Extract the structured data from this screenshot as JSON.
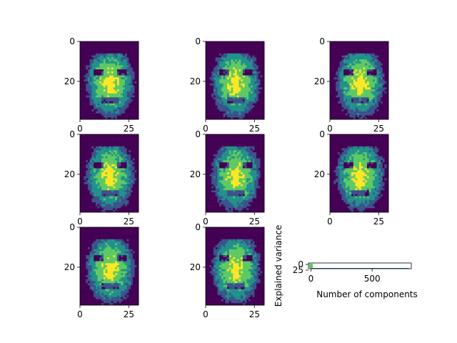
{
  "chart_data": [
    {
      "type": "image",
      "panel": 1,
      "xticks": [
        "0",
        "25"
      ],
      "yticks": [
        "0",
        "20"
      ],
      "xlim": [
        0,
        30
      ],
      "ylim": [
        39,
        0
      ],
      "image_seed": 11,
      "palette": [
        "#440154",
        "#3b528b",
        "#21918c",
        "#5ec962",
        "#fde725"
      ]
    },
    {
      "type": "image",
      "panel": 2,
      "xticks": [
        "0",
        "25"
      ],
      "yticks": [
        "0",
        "20"
      ],
      "xlim": [
        0,
        30
      ],
      "ylim": [
        39,
        0
      ],
      "image_seed": 23,
      "palette": [
        "#440154",
        "#3b528b",
        "#21918c",
        "#5ec962",
        "#fde725"
      ]
    },
    {
      "type": "image",
      "panel": 3,
      "xticks": [
        "0",
        "25"
      ],
      "yticks": [
        "0",
        "20"
      ],
      "xlim": [
        0,
        30
      ],
      "ylim": [
        39,
        0
      ],
      "image_seed": 37,
      "palette": [
        "#440154",
        "#3b528b",
        "#21918c",
        "#5ec962",
        "#fde725"
      ]
    },
    {
      "type": "image",
      "panel": 4,
      "xticks": [
        "0",
        "25"
      ],
      "yticks": [
        "0",
        "20"
      ],
      "xlim": [
        0,
        30
      ],
      "ylim": [
        39,
        0
      ],
      "image_seed": 41,
      "palette": [
        "#440154",
        "#3b528b",
        "#21918c",
        "#5ec962",
        "#fde725"
      ]
    },
    {
      "type": "image",
      "panel": 5,
      "xticks": [
        "0",
        "25"
      ],
      "yticks": [
        "0",
        "20"
      ],
      "xlim": [
        0,
        30
      ],
      "ylim": [
        39,
        0
      ],
      "image_seed": 53,
      "palette": [
        "#440154",
        "#3b528b",
        "#21918c",
        "#5ec962",
        "#fde725"
      ]
    },
    {
      "type": "image",
      "panel": 6,
      "xticks": [
        "0",
        "25"
      ],
      "yticks": [
        "0",
        "20"
      ],
      "xlim": [
        0,
        30
      ],
      "ylim": [
        39,
        0
      ],
      "image_seed": 67,
      "palette": [
        "#440154",
        "#3b528b",
        "#21918c",
        "#5ec962",
        "#fde725"
      ]
    },
    {
      "type": "image",
      "panel": 7,
      "xticks": [
        "0",
        "25"
      ],
      "yticks": [
        "0",
        "20"
      ],
      "xlim": [
        0,
        30
      ],
      "ylim": [
        39,
        0
      ],
      "image_seed": 79,
      "palette": [
        "#440154",
        "#3b528b",
        "#21918c",
        "#5ec962",
        "#fde725"
      ]
    },
    {
      "type": "image",
      "panel": 8,
      "xticks": [
        "0",
        "25"
      ],
      "yticks": [
        "0",
        "20"
      ],
      "xlim": [
        0,
        30
      ],
      "ylim": [
        39,
        0
      ],
      "image_seed": 83,
      "palette": [
        "#440154",
        "#3b528b",
        "#21918c",
        "#5ec962",
        "#fde725"
      ]
    },
    {
      "type": "line",
      "panel": 9,
      "xlabel": "Number of components",
      "ylabel": "Explained variance",
      "xticks": [
        "0",
        "500"
      ],
      "yticks": [
        "0",
        "25"
      ],
      "xlim": [
        -20,
        820
      ],
      "ylim": [
        -2,
        30
      ],
      "series": [
        {
          "x": [
            0,
            800
          ],
          "y": [
            0,
            0
          ]
        }
      ],
      "highlight_color": "#5ec962"
    }
  ]
}
